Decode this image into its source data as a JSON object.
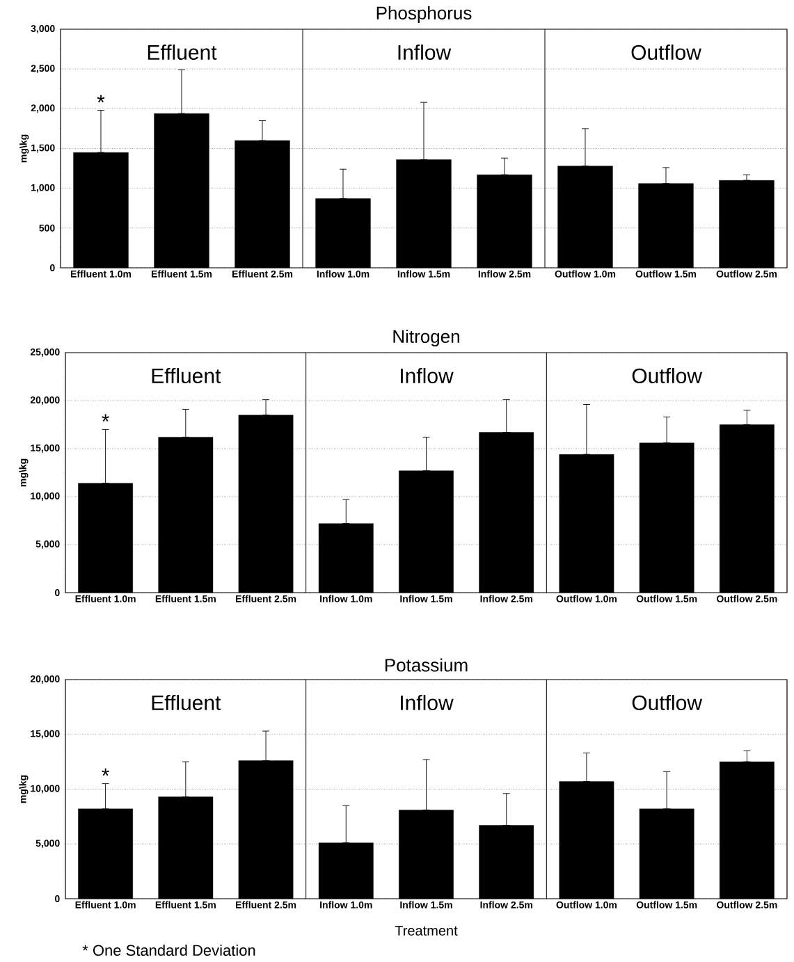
{
  "chart_data": [
    {
      "type": "bar",
      "title": "Phosphorus",
      "ylabel": "mg\\kg",
      "categories": [
        "Effluent 1.0m",
        "Effluent 1.5m",
        "Effluent 2.5m",
        "Inflow 1.0m",
        "Inflow 1.5m",
        "Inflow 2.5m",
        "Outflow 1.0m",
        "Outflow 1.5m",
        "Outflow 2.5m"
      ],
      "values": [
        1450,
        1940,
        1600,
        870,
        1360,
        1170,
        1280,
        1060,
        1100
      ],
      "errors": [
        [
          1450,
          1980
        ],
        [
          1940,
          2490
        ],
        [
          1600,
          1850
        ],
        [
          870,
          1240
        ],
        [
          1360,
          2080
        ],
        [
          1170,
          1380
        ],
        [
          1280,
          1750
        ],
        [
          1060,
          1260
        ],
        [
          1100,
          1170
        ]
      ],
      "color": "#000000",
      "ylim": [
        0,
        3000
      ],
      "yticks": [
        0,
        500,
        {
          "value": 1000,
          "label": "1,000"
        },
        {
          "value": 1500,
          "label": "1,500"
        },
        {
          "value": 2000,
          "label": "2,000"
        },
        {
          "value": 2500,
          "label": "2,500"
        },
        {
          "value": 3000,
          "label": "3,000"
        }
      ],
      "grid": "y",
      "annotations": [
        "Effluent",
        "Inflow",
        "Outflow",
        {
          "text": "*",
          "x": "Effluent 1.0m",
          "y": 1980
        }
      ]
    },
    {
      "type": "bar",
      "title": "Nitrogen",
      "ylabel": "mg\\kg",
      "categories": [
        "Effluent 1.0m",
        "Effluent 1.5m",
        "Effluent 2.5m",
        "Inflow 1.0m",
        "Inflow 1.5m",
        "Inflow 2.5m",
        "Outflow 1.0m",
        "Outflow 1.5m",
        "Outflow 2.5m"
      ],
      "values": [
        11400,
        16200,
        18500,
        7200,
        12700,
        16700,
        14400,
        15600,
        17500
      ],
      "errors": [
        [
          11400,
          17000
        ],
        [
          16200,
          19100
        ],
        [
          18500,
          20100
        ],
        [
          7200,
          9700
        ],
        [
          12700,
          16200
        ],
        [
          16700,
          20100
        ],
        [
          14400,
          19600
        ],
        [
          15600,
          18300
        ],
        [
          17500,
          19000
        ]
      ],
      "color": "#000000",
      "ylim": [
        0,
        25000
      ],
      "yticks": [
        0,
        {
          "value": 5000,
          "label": "5,000"
        },
        {
          "value": 10000,
          "label": "10,000"
        },
        {
          "value": 15000,
          "label": "15,000"
        },
        {
          "value": 20000,
          "label": "20,000"
        },
        {
          "value": 25000,
          "label": "25,000"
        }
      ],
      "grid": "y",
      "annotations": [
        "Effluent",
        "Inflow",
        "Outflow",
        {
          "text": "*",
          "x": "Effluent 1.0m",
          "y": 17000
        }
      ]
    },
    {
      "type": "bar",
      "title": "Potassium",
      "ylabel": "mg\\kg",
      "xlabel": "Treatment",
      "categories": [
        "Effluent 1.0m",
        "Effluent 1.5m",
        "Effluent 2.5m",
        "Inflow 1.0m",
        "Inflow 1.5m",
        "Inflow 2.5m",
        "Outflow 1.0m",
        "Outflow 1.5m",
        "Outflow 2.5m"
      ],
      "values": [
        8200,
        9300,
        12600,
        5100,
        8100,
        6700,
        10700,
        8200,
        12500
      ],
      "errors": [
        [
          8200,
          10500
        ],
        [
          9300,
          12500
        ],
        [
          12600,
          15300
        ],
        [
          5100,
          8500
        ],
        [
          8100,
          12700
        ],
        [
          6700,
          9600
        ],
        [
          10700,
          13300
        ],
        [
          8200,
          11600
        ],
        [
          12500,
          13500
        ]
      ],
      "color": "#000000",
      "ylim": [
        0,
        20000
      ],
      "yticks": [
        0,
        {
          "value": 5000,
          "label": "5,000"
        },
        {
          "value": 10000,
          "label": "10,000"
        },
        {
          "value": 15000,
          "label": "15,000"
        },
        {
          "value": 20000,
          "label": "20,000"
        }
      ],
      "grid": "y",
      "annotations": [
        "Effluent",
        "Inflow",
        "Outflow",
        {
          "text": "*",
          "x": "Effluent 1.0m",
          "y": 10500
        },
        "* One Standard Deviation"
      ]
    }
  ]
}
